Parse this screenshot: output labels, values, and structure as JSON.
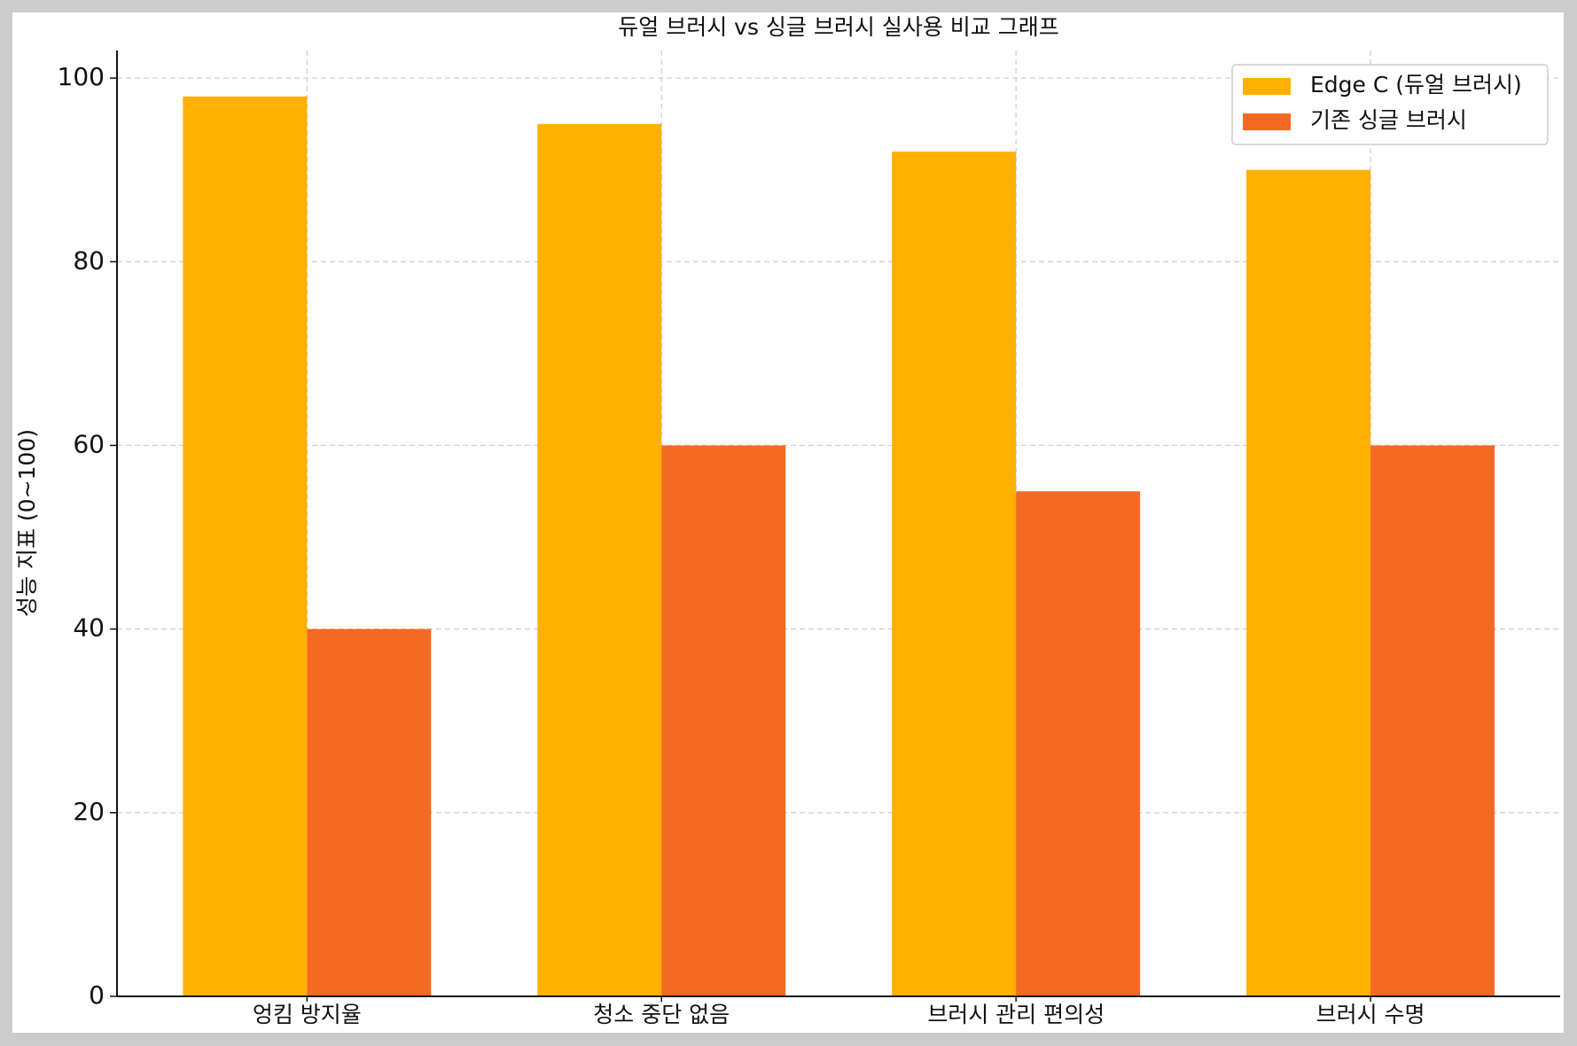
{
  "chart_data": {
    "type": "bar",
    "title": "듀얼 브러시 vs 싱글 브러시 실사용 비교 그래프",
    "y_label": "성능 지표 (0~100)",
    "categories": [
      "엉킴 방지율",
      "청소 중단 없음",
      "브러시 관리 편의성",
      "브러시 수명"
    ],
    "series": [
      {
        "name": "Edge C (듀얼 브러시)",
        "color": "#FFB000",
        "values": [
          98,
          95,
          92,
          90
        ]
      },
      {
        "name": "기존 싱글 브러시",
        "color": "#F46A22",
        "values": [
          40,
          60,
          55,
          60
        ]
      }
    ],
    "ylim": [
      0,
      103
    ],
    "yticks": [
      0,
      20,
      40,
      60,
      80,
      100
    ],
    "grid": true,
    "legend": "upper right"
  }
}
